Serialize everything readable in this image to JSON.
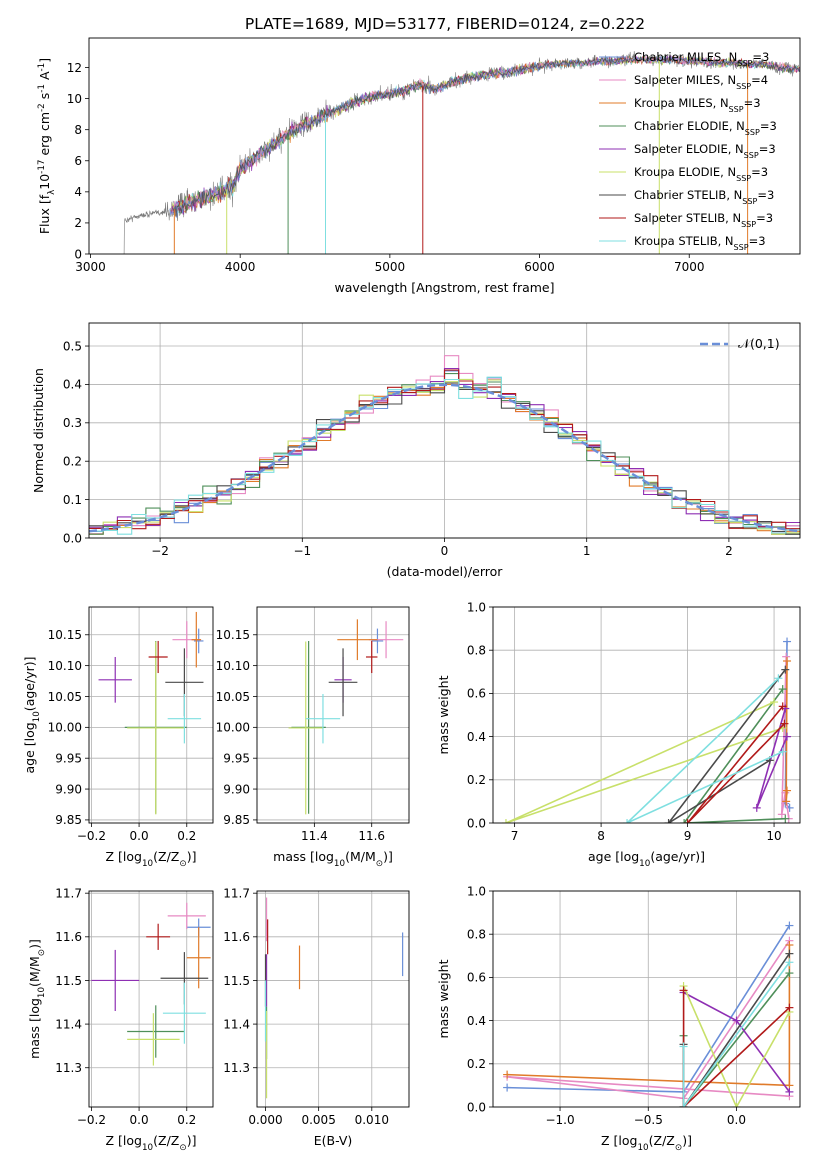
{
  "title": "PLATE=1689, MJD=53177, FIBERID=0124, z=0.222",
  "colors": [
    "#6a8fd8",
    "#e78ac3",
    "#e07b2a",
    "#4f8f5a",
    "#8e2fb3",
    "#c8e06a",
    "#4a4a4a",
    "#b11a1a",
    "#7fdfe0"
  ],
  "chart_data": [
    {
      "id": "spectrum",
      "type": "line",
      "xlabel": "wavelength [Angstrom, rest frame]",
      "ylabel": "Flux [f$_\\lambda$10$^{-17}$ erg cm$^{-2}$ s$^{-1}$ A$^{-1}$]",
      "xlim": [
        2990,
        7740
      ],
      "ylim": [
        0,
        13.9
      ],
      "xticks": [
        3000,
        4000,
        5000,
        6000,
        7000
      ],
      "yticks": [
        0,
        2,
        4,
        6,
        8,
        10,
        12
      ],
      "grid": false,
      "legend": "top-right",
      "legend_entries": [
        {
          "label": "Chabrier MILES, N$_{SSP}$=3",
          "color": "#6a8fd8"
        },
        {
          "label": "Salpeter MILES, N$_{SSP}$=4",
          "color": "#e78ac3"
        },
        {
          "label": "Kroupa MILES, N$_{SSP}$=3",
          "color": "#e07b2a"
        },
        {
          "label": "Chabrier ELODIE, N$_{SSP}$=3",
          "color": "#4f8f5a"
        },
        {
          "label": "Salpeter ELODIE, N$_{SSP}$=3",
          "color": "#8e2fb3"
        },
        {
          "label": "Kroupa ELODIE, N$_{SSP}$=3",
          "color": "#c8e06a"
        },
        {
          "label": "Chabrier STELIB, N$_{SSP}$=3",
          "color": "#4a4a4a"
        },
        {
          "label": "Salpeter STELIB, N$_{SSP}$=3",
          "color": "#b11a1a"
        },
        {
          "label": "Kroupa STELIB, N$_{SSP}$=3",
          "color": "#7fdfe0"
        }
      ],
      "continuum": {
        "x": [
          3220,
          3300,
          3400,
          3500,
          3600,
          3700,
          3800,
          3900,
          3950,
          4000,
          4100,
          4200,
          4300,
          4400,
          4500,
          4600,
          4700,
          4800,
          4900,
          5000,
          5100,
          5200,
          5300,
          5400,
          5500,
          5600,
          5700,
          5800,
          5900,
          6000,
          6100,
          6200,
          6300,
          6400,
          6500,
          6600,
          6700,
          6800,
          6900,
          7000,
          7100,
          7200,
          7300,
          7400,
          7500,
          7600,
          7700
        ],
        "y": [
          2.1,
          2.4,
          2.6,
          2.7,
          3.0,
          3.5,
          3.7,
          4.1,
          4.4,
          5.5,
          6.2,
          6.9,
          7.6,
          8.2,
          8.6,
          9.1,
          9.5,
          9.9,
          10.2,
          10.3,
          10.5,
          10.9,
          10.6,
          11.0,
          11.3,
          11.5,
          11.6,
          11.7,
          11.9,
          12.1,
          12.2,
          12.3,
          12.3,
          12.4,
          12.4,
          12.5,
          12.5,
          12.5,
          12.5,
          12.4,
          12.4,
          12.3,
          12.3,
          12.2,
          12.2,
          12.0,
          11.9
        ]
      },
      "data_start": 3220,
      "model_start": 3530
    },
    {
      "id": "residuals",
      "type": "histogram",
      "xlabel": "(data-model)/error",
      "ylabel": "Normed distribution",
      "xlim": [
        -2.5,
        2.5
      ],
      "ylim": [
        0,
        0.56
      ],
      "xticks": [
        -2,
        -1,
        0,
        1,
        2
      ],
      "yticks": [
        0.0,
        0.1,
        0.2,
        0.3,
        0.4,
        0.5
      ],
      "grid": true,
      "legend": "top-right",
      "legend_label": "$\\mathcal{N}(0,1)$",
      "bin_width": 0.1,
      "hist_color_order": [
        0,
        1,
        2,
        3,
        4,
        5,
        6,
        7,
        8
      ]
    },
    {
      "id": "age-vs-Z",
      "type": "errorbar",
      "xlabel": "Z [log$_{10}$($Z/Z_\\odot$)]",
      "ylabel": "age  [log$_{10}$($age/yr$)]",
      "xlim": [
        -0.21,
        0.31
      ],
      "ylim": [
        9.845,
        10.195
      ],
      "xticks": [
        -0.2,
        0.0,
        0.2
      ],
      "yticks": [
        9.85,
        9.9,
        9.95,
        10.0,
        10.05,
        10.1,
        10.15
      ],
      "grid": true,
      "points": [
        {
          "x": 0.25,
          "xerr": 0.02,
          "y": 10.14,
          "yerr": 0.02
        },
        {
          "x": 0.2,
          "xerr": 0.06,
          "y": 10.142,
          "yerr": 0.03
        },
        {
          "x": 0.24,
          "xerr": 0.02,
          "y": 10.142,
          "yerr": 0.045
        },
        {
          "x": 0.07,
          "xerr": 0.13,
          "y": 10.0,
          "yerr": 0.14
        },
        {
          "x": -0.1,
          "xerr": 0.07,
          "y": 10.077,
          "yerr": 0.037
        },
        {
          "x": 0.07,
          "xerr": 0.12,
          "y": 9.999,
          "yerr": 0.14
        },
        {
          "x": 0.19,
          "xerr": 0.08,
          "y": 10.073,
          "yerr": 0.055
        },
        {
          "x": 0.08,
          "xerr": 0.04,
          "y": 10.114,
          "yerr": 0.026
        },
        {
          "x": 0.19,
          "xerr": 0.07,
          "y": 10.014,
          "yerr": 0.04
        }
      ]
    },
    {
      "id": "age-vs-mass",
      "type": "errorbar",
      "xlabel": "mass [log$_{10}$($M/M_\\odot$)]",
      "ylabel": "",
      "xlim": [
        11.2,
        11.73
      ],
      "ylim": [
        9.845,
        10.195
      ],
      "xticks": [
        11.4,
        11.6
      ],
      "yticks": [
        9.85,
        9.9,
        9.95,
        10.0,
        10.05,
        10.1,
        10.15
      ],
      "grid": true,
      "points": [
        {
          "x": 11.62,
          "xerr": 0.02,
          "y": 10.14,
          "yerr": 0.02
        },
        {
          "x": 11.65,
          "xerr": 0.06,
          "y": 10.142,
          "yerr": 0.03
        },
        {
          "x": 11.55,
          "xerr": 0.07,
          "y": 10.142,
          "yerr": 0.033
        },
        {
          "x": 11.38,
          "xerr": 0.06,
          "y": 10.0,
          "yerr": 0.14
        },
        {
          "x": 11.5,
          "xerr": 0.03,
          "y": 10.077,
          "yerr": 0.037
        },
        {
          "x": 11.37,
          "xerr": 0.06,
          "y": 9.999,
          "yerr": 0.14
        },
        {
          "x": 11.5,
          "xerr": 0.05,
          "y": 10.073,
          "yerr": 0.055
        },
        {
          "x": 11.6,
          "xerr": 0.02,
          "y": 10.114,
          "yerr": 0.026
        },
        {
          "x": 11.43,
          "xerr": 0.06,
          "y": 10.014,
          "yerr": 0.04
        }
      ]
    },
    {
      "id": "weight-vs-age",
      "type": "line",
      "xlabel": "age  [log$_{10}$($age/yr$)]",
      "ylabel": "mass weight",
      "xlim": [
        6.75,
        10.3
      ],
      "ylim": [
        0,
        1.0
      ],
      "xticks": [
        7,
        8,
        9,
        10
      ],
      "yticks": [
        0.0,
        0.2,
        0.4,
        0.6,
        0.8,
        1.0
      ],
      "grid": true,
      "series": [
        {
          "x": [
            10.15,
            10.13,
            10.18
          ],
          "y": [
            0.84,
            0.09,
            0.07
          ]
        },
        {
          "x": [
            10.14,
            10.09,
            10.13,
            10.17
          ],
          "y": [
            0.77,
            0.04,
            0.14,
            0.02
          ]
        },
        {
          "x": [
            10.15,
            10.14,
            10.15
          ],
          "y": [
            0.75,
            0.1,
            0.15
          ]
        },
        {
          "x": [
            10.1,
            8.96,
            10.13
          ],
          "y": [
            0.62,
            0.0,
            0.02
          ]
        },
        {
          "x": [
            10.13,
            9.8,
            10.15
          ],
          "y": [
            0.53,
            0.07,
            0.4
          ]
        },
        {
          "x": [
            10.0,
            6.9,
            10.1
          ],
          "y": [
            0.56,
            0.0,
            0.44
          ]
        },
        {
          "x": [
            10.13,
            8.78,
            9.95
          ],
          "y": [
            0.71,
            0.0,
            0.29
          ]
        },
        {
          "x": [
            10.12,
            9.0,
            10.1
          ],
          "y": [
            0.46,
            0.0,
            0.54
          ]
        },
        {
          "x": [
            10.05,
            8.3,
            10.1
          ],
          "y": [
            0.67,
            0.0,
            0.33
          ]
        }
      ]
    },
    {
      "id": "mass-vs-Z",
      "type": "errorbar",
      "xlabel": "Z [log$_{10}$($Z/Z_\\odot$)]",
      "ylabel": "mass [log$_{10}$($M/M_\\odot$)]",
      "xlim": [
        -0.21,
        0.31
      ],
      "ylim": [
        11.21,
        11.705
      ],
      "xticks": [
        -0.2,
        0.0,
        0.2
      ],
      "yticks": [
        11.3,
        11.4,
        11.5,
        11.6,
        11.7
      ],
      "grid": true,
      "points": [
        {
          "x": 0.25,
          "xerr": 0.05,
          "y": 11.622,
          "yerr": 0.02
        },
        {
          "x": 0.2,
          "xerr": 0.08,
          "y": 11.648,
          "yerr": 0.03
        },
        {
          "x": 0.25,
          "xerr": 0.05,
          "y": 11.552,
          "yerr": 0.07
        },
        {
          "x": 0.07,
          "xerr": 0.12,
          "y": 11.383,
          "yerr": 0.06
        },
        {
          "x": -0.1,
          "xerr": 0.1,
          "y": 11.5,
          "yerr": 0.07
        },
        {
          "x": 0.06,
          "xerr": 0.11,
          "y": 11.365,
          "yerr": 0.06
        },
        {
          "x": 0.19,
          "xerr": 0.1,
          "y": 11.505,
          "yerr": 0.06
        },
        {
          "x": 0.08,
          "xerr": 0.05,
          "y": 11.6,
          "yerr": 0.03
        },
        {
          "x": 0.19,
          "xerr": 0.09,
          "y": 11.425,
          "yerr": 0.07
        }
      ]
    },
    {
      "id": "mass-vs-ebv",
      "type": "errorbar",
      "xlabel": "E(B-V)",
      "ylabel": "",
      "xlim": [
        -0.0008,
        0.0135
      ],
      "ylim": [
        11.21,
        11.705
      ],
      "xticks": [
        0.0,
        0.005,
        0.01
      ],
      "xticklabels": [
        "0.000",
        "0.005",
        "0.010"
      ],
      "yticks": [
        11.3,
        11.4,
        11.5,
        11.6,
        11.7
      ],
      "grid": true,
      "points": [
        {
          "x": 0.0129,
          "xerr": 0,
          "y": 11.56,
          "yerr": 0.05
        },
        {
          "x": 0.0001,
          "xerr": 0,
          "y": 11.64,
          "yerr": 0.05
        },
        {
          "x": 0.0032,
          "xerr": 0,
          "y": 11.53,
          "yerr": 0.05
        },
        {
          "x": 0.0001,
          "xerr": 0,
          "y": 11.38,
          "yerr": 0.06
        },
        {
          "x": 0.0001,
          "xerr": 0,
          "y": 11.5,
          "yerr": 0.06
        },
        {
          "x": 0.0001,
          "xerr": 0,
          "y": 11.33,
          "yerr": 0.1
        },
        {
          "x": 0.0,
          "xerr": 0,
          "y": 11.5,
          "yerr": 0.06
        },
        {
          "x": 0.0002,
          "xerr": 0,
          "y": 11.6,
          "yerr": 0.04
        },
        {
          "x": 0.0,
          "xerr": 0,
          "y": 11.43,
          "yerr": 0.07
        }
      ]
    },
    {
      "id": "weight-vs-Z",
      "type": "line",
      "xlabel": "Z [log$_{10}$($Z/Z_\\odot$)]",
      "ylabel": "mass weight",
      "xlim": [
        -1.38,
        0.36
      ],
      "ylim": [
        0,
        1.0
      ],
      "xticks": [
        -1.0,
        -0.5,
        0.0
      ],
      "yticks": [
        0.0,
        0.2,
        0.4,
        0.6,
        0.8,
        1.0
      ],
      "grid": true,
      "series": [
        {
          "x": [
            0.3,
            -0.3,
            -1.3
          ],
          "y": [
            0.84,
            0.07,
            0.09
          ]
        },
        {
          "x": [
            0.3,
            -0.3,
            -1.3,
            0.3
          ],
          "y": [
            0.77,
            0.04,
            0.14,
            0.05
          ]
        },
        {
          "x": [
            0.3,
            0.3,
            -1.3
          ],
          "y": [
            0.75,
            0.1,
            0.15
          ]
        },
        {
          "x": [
            0.3,
            -0.3,
            -0.3
          ],
          "y": [
            0.62,
            0.0,
            0.33
          ]
        },
        {
          "x": [
            0.3,
            0.0,
            -0.3
          ],
          "y": [
            0.07,
            0.4,
            0.53
          ]
        },
        {
          "x": [
            0.3,
            0.0,
            -0.3
          ],
          "y": [
            0.44,
            0.0,
            0.56
          ]
        },
        {
          "x": [
            0.3,
            -0.3,
            -0.3
          ],
          "y": [
            0.71,
            0.0,
            0.29
          ]
        },
        {
          "x": [
            0.3,
            -0.3,
            -0.3
          ],
          "y": [
            0.46,
            0.0,
            0.54
          ]
        },
        {
          "x": [
            0.3,
            -0.3,
            -0.3
          ],
          "y": [
            0.67,
            0.0,
            0.28
          ]
        }
      ]
    }
  ]
}
